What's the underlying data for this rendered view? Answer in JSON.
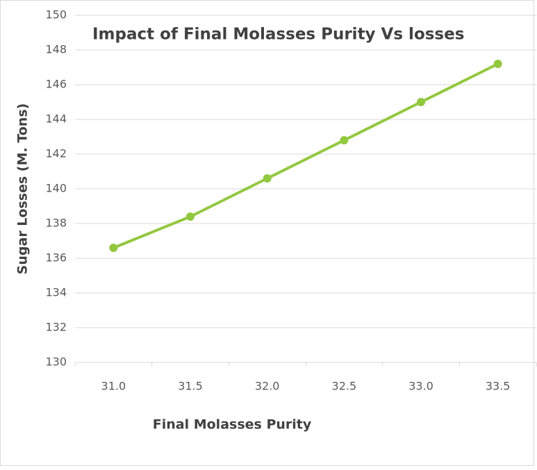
{
  "chart_data": {
    "type": "line",
    "title": "Impact of Final Molasses Purity Vs losses",
    "x_label": "Final Molasses Purity",
    "y_label": "Sugar Losses (M. Tons)",
    "categories": [
      "31.0",
      "31.5",
      "32.0",
      "32.5",
      "33.0",
      "33.5"
    ],
    "values": [
      136.6,
      138.4,
      140.6,
      142.8,
      145.0,
      147.2
    ],
    "color": "#92c83e",
    "ylim": [
      130,
      150
    ],
    "yticks": [
      130,
      132,
      134,
      136,
      138,
      140,
      142,
      144,
      146,
      148,
      150
    ],
    "grid": true
  }
}
